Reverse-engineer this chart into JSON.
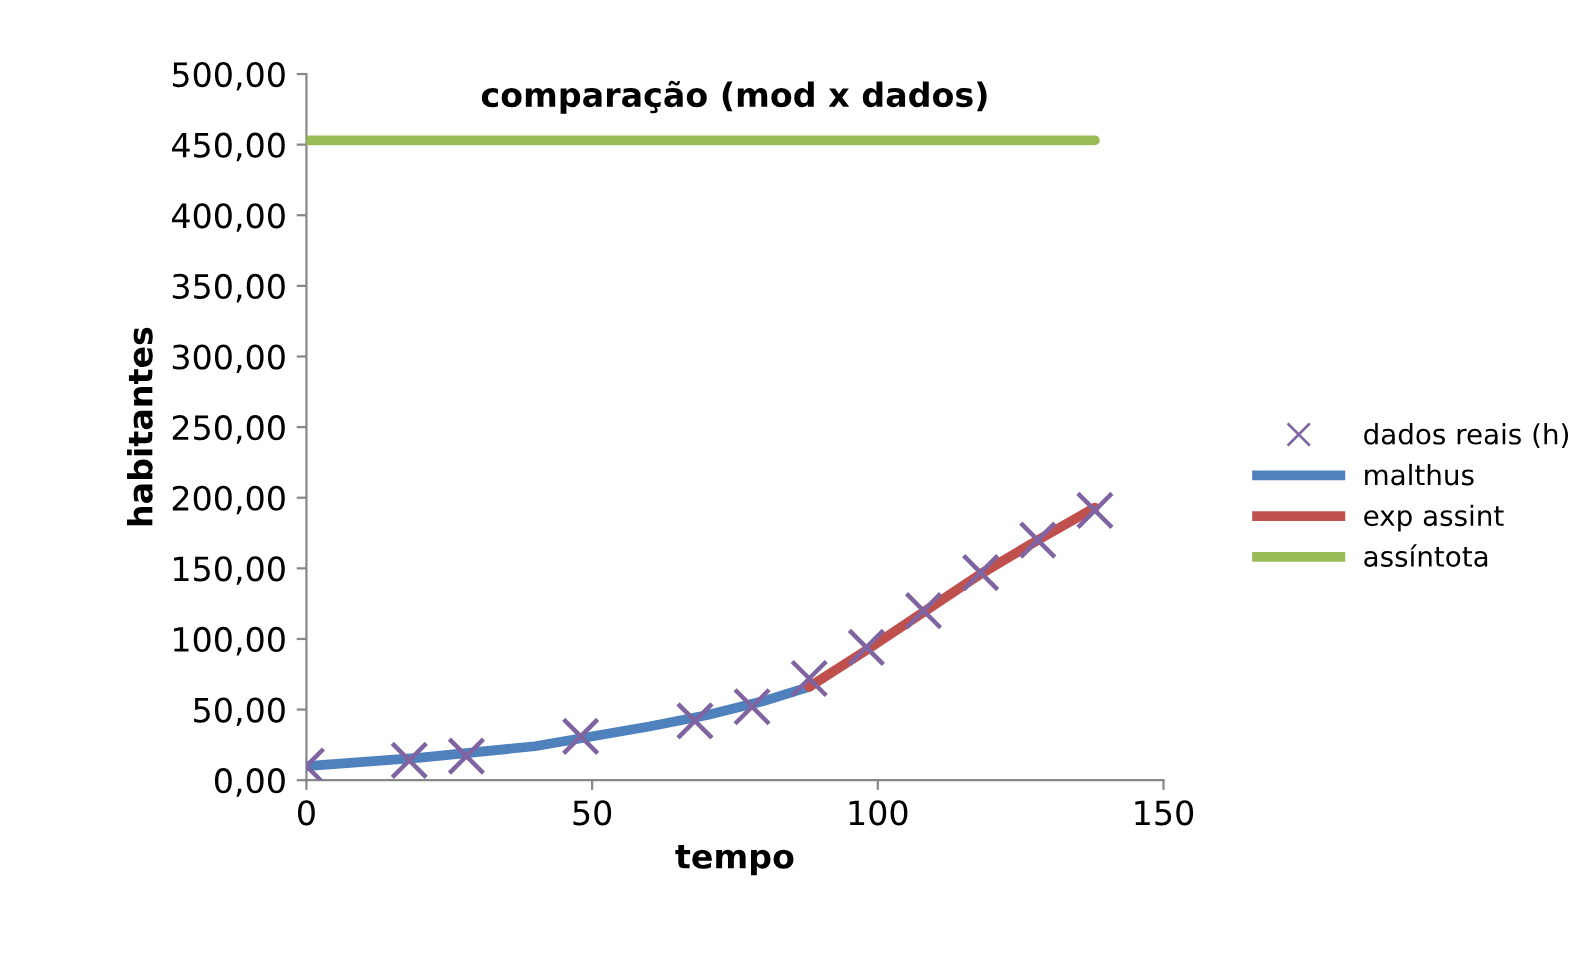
{
  "chart_data": {
    "type": "line",
    "title": "comparação (mod x dados)",
    "xlabel": "tempo",
    "ylabel": "habitantes",
    "xlim": [
      0,
      150
    ],
    "xticks": [
      0,
      50,
      100,
      150
    ],
    "ylim": [
      0,
      500
    ],
    "yticks": [
      {
        "value": 0,
        "label": "0,00"
      },
      {
        "value": 50,
        "label": "50,00"
      },
      {
        "value": 100,
        "label": "100,00"
      },
      {
        "value": 150,
        "label": "150,00"
      },
      {
        "value": 200,
        "label": "200,00"
      },
      {
        "value": 250,
        "label": "250,00"
      },
      {
        "value": 300,
        "label": "300,00"
      },
      {
        "value": 350,
        "label": "350,00"
      },
      {
        "value": 400,
        "label": "400,00"
      },
      {
        "value": 450,
        "label": "450,00"
      },
      {
        "value": 500,
        "label": "500,00"
      }
    ],
    "grid": false,
    "legend": "right",
    "series": [
      {
        "name": "dados reais (h)",
        "type": "scatter",
        "marker": "cross",
        "color": "#8064a2",
        "x": [
          0,
          18,
          28,
          48,
          68,
          78,
          88,
          98,
          108,
          118,
          128,
          138
        ],
        "values": [
          10,
          14,
          17,
          31,
          42,
          52,
          72,
          94,
          120,
          147,
          170,
          191
        ]
      },
      {
        "name": "malthus",
        "color": "#4f81bd",
        "x": [
          0,
          20,
          40,
          60,
          70,
          80,
          88
        ],
        "values": [
          10,
          16,
          24,
          38,
          46,
          56,
          66
        ]
      },
      {
        "name": "exp assint",
        "color": "#c0504d",
        "x": [
          88,
          98,
          108,
          118,
          128,
          138
        ],
        "values": [
          66,
          92,
          119,
          146,
          170,
          193
        ]
      },
      {
        "name": "assíntota",
        "color": "#9bbb59",
        "x": [
          0,
          138
        ],
        "values": [
          453,
          453
        ]
      }
    ]
  }
}
